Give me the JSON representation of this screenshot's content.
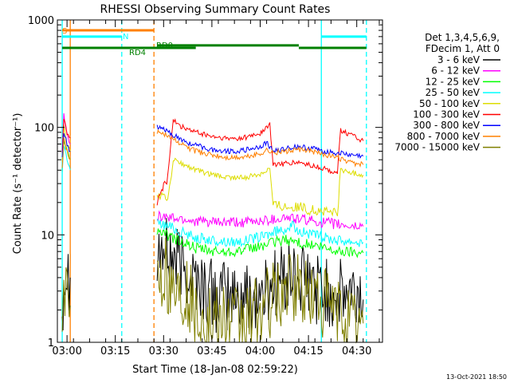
{
  "chart_data": {
    "type": "line",
    "title": "RHESSI Observing Summary Count Rates",
    "xlabel": "Start Time (18-Jan-08 02:59:22)",
    "ylabel": "Count Rate (s⁻¹ detector⁻¹)",
    "yscale": "log",
    "ylim": [
      1,
      1000
    ],
    "xlim_minutes": [
      -3,
      98
    ],
    "x_tick_labels": [
      "03:00",
      "03:15",
      "03:30",
      "03:45",
      "04:00",
      "04:15",
      "04:30"
    ],
    "x_tick_minutes": [
      0,
      15,
      30,
      45,
      60,
      75,
      90
    ],
    "y_tick_labels": [
      "1",
      "10",
      "100",
      "1000"
    ],
    "y_tick_values": [
      1,
      10,
      100,
      1000
    ],
    "legend_header": [
      "Det 1,3,4,5,6,9,",
      "FDecim 1, Att 0"
    ],
    "legend_position": "right",
    "footer_date": "13-Oct-2021 18:50",
    "gap_minutes": [
      1,
      28
    ],
    "series": [
      {
        "name": "3 - 6 keV",
        "color": "#000000",
        "x": [
          -1.5,
          -1,
          0,
          1,
          28,
          30,
          33,
          36,
          40,
          43,
          46,
          50,
          55,
          60,
          62,
          64,
          66,
          68,
          72,
          76,
          80,
          84,
          88,
          92
        ],
        "y": [
          2,
          4,
          5,
          4,
          8,
          7,
          6,
          5,
          4,
          3,
          2.7,
          2.6,
          2.6,
          2.7,
          3,
          3.6,
          4,
          4,
          3.8,
          3.4,
          3,
          2.7,
          2.6,
          2.5
        ]
      },
      {
        "name": "6 - 12 keV",
        "color": "#ff00ff",
        "x": [
          -1.5,
          -1,
          0,
          1,
          28,
          32,
          36,
          40,
          45,
          50,
          55,
          60,
          64,
          68,
          72,
          76,
          80,
          84,
          88,
          92
        ],
        "y": [
          60,
          130,
          90,
          70,
          15,
          14.5,
          14,
          13.5,
          13,
          13,
          13,
          13.5,
          14,
          14.5,
          14,
          13.5,
          13,
          12.5,
          12,
          12
        ]
      },
      {
        "name": "12 - 25 keV",
        "color": "#00ff00",
        "x": [
          -1.5,
          -1,
          0,
          1,
          28,
          32,
          36,
          40,
          45,
          50,
          55,
          60,
          64,
          68,
          72,
          76,
          80,
          84,
          88,
          92
        ],
        "y": [
          40,
          80,
          60,
          50,
          11,
          9.5,
          8.5,
          7.5,
          7,
          7,
          7.2,
          7.8,
          8.5,
          9,
          8.5,
          8,
          7.5,
          7,
          7,
          6.8
        ]
      },
      {
        "name": "25 - 50 keV",
        "color": "#00ffff",
        "x": [
          -1.5,
          -1,
          0,
          1,
          28,
          32,
          36,
          40,
          45,
          50,
          55,
          60,
          64,
          68,
          70,
          72,
          76,
          80,
          84,
          88,
          92
        ],
        "y": [
          40,
          70,
          50,
          40,
          13,
          12,
          10.5,
          9.5,
          8.8,
          8.6,
          8.8,
          9.5,
          10.5,
          11.5,
          12,
          11,
          10,
          9.5,
          9,
          8.8,
          8.5
        ]
      },
      {
        "name": "50 - 100 keV",
        "color": "#dddd00",
        "x": [
          -1.5,
          -1,
          0,
          1,
          28,
          30,
          31,
          33,
          36,
          40,
          45,
          50,
          55,
          60,
          62,
          63,
          64,
          68,
          72,
          76,
          80,
          84,
          85,
          88,
          92
        ],
        "y": [
          50,
          100,
          70,
          60,
          24,
          22,
          20,
          50,
          45,
          40,
          36,
          34,
          34,
          37,
          40,
          42,
          19,
          18.5,
          18,
          17,
          16.5,
          16,
          40,
          38,
          36
        ]
      },
      {
        "name": "100 - 300 keV",
        "color": "#ff0000",
        "x": [
          -1.5,
          -1,
          0,
          1,
          28,
          30,
          31,
          33,
          36,
          40,
          45,
          50,
          55,
          60,
          62,
          63,
          64,
          68,
          72,
          76,
          80,
          84,
          85,
          88,
          92
        ],
        "y": [
          60,
          120,
          90,
          80,
          20,
          30,
          30,
          115,
          100,
          90,
          82,
          78,
          80,
          88,
          100,
          105,
          45,
          46,
          47,
          44,
          41,
          38,
          95,
          85,
          75
        ]
      },
      {
        "name": "300 - 800 keV",
        "color": "#0000ff",
        "x": [
          -1.5,
          -1,
          0,
          1,
          28,
          30,
          33,
          36,
          40,
          45,
          50,
          55,
          60,
          62,
          64,
          68,
          72,
          76,
          80,
          84,
          88,
          92
        ],
        "y": [
          50,
          90,
          70,
          60,
          100,
          95,
          85,
          75,
          68,
          62,
          60,
          61,
          66,
          72,
          60,
          64,
          66,
          64,
          60,
          58,
          55,
          54
        ]
      },
      {
        "name": "800 - 7000 keV",
        "color": "#ff8000",
        "x": [
          -1.5,
          -1,
          0,
          1,
          28,
          30,
          33,
          36,
          40,
          45,
          50,
          55,
          60,
          62,
          64,
          68,
          72,
          76,
          80,
          84,
          88,
          92
        ],
        "y": [
          40,
          80,
          60,
          50,
          92,
          88,
          78,
          68,
          60,
          55,
          52,
          53,
          57,
          62,
          58,
          60,
          62,
          60,
          56,
          52,
          47,
          45
        ]
      },
      {
        "name": "7000 - 15000 keV",
        "color": "#808000",
        "x": [
          -1.5,
          -1,
          0,
          1,
          28,
          30,
          33,
          36,
          40,
          44,
          48,
          52,
          56,
          60,
          64,
          68,
          72,
          76,
          80,
          84,
          88,
          92
        ],
        "y": [
          1.8,
          2.5,
          2.5,
          2.2,
          5.5,
          4.5,
          3.5,
          2.8,
          2.2,
          1.5,
          1.5,
          1.5,
          1.6,
          2,
          2.6,
          3,
          3,
          2.8,
          2.4,
          2,
          1.6,
          1.5
        ]
      }
    ],
    "flag_bars": [
      {
        "label": "S",
        "color": "#ff8000",
        "x_start": -1.5,
        "x_end": 27,
        "y": 800
      },
      {
        "label": "N",
        "color": "#00ffff",
        "x_start": -1.5,
        "x_end": 17,
        "y": 700
      },
      {
        "label": "",
        "color": "#00ffff",
        "x_start": 79,
        "x_end": 93,
        "y": 700
      },
      {
        "label": "RD0",
        "color": "#008000",
        "x_start": 28,
        "x_end": 72,
        "y": 580
      },
      {
        "label": "RD4",
        "color": "#008000",
        "x_start": -1.5,
        "x_end": 40,
        "y": 550
      },
      {
        "label": "",
        "color": "#008000",
        "x_start": 72,
        "x_end": 93,
        "y": 550
      }
    ],
    "vertical_markers": [
      {
        "x": -1.5,
        "color": "#00ffff",
        "dashed": false
      },
      {
        "x": 1,
        "color": "#ff8000",
        "dashed": false
      },
      {
        "x": 17,
        "color": "#00ffff",
        "dashed": true
      },
      {
        "x": 27,
        "color": "#ff8000",
        "dashed": true
      },
      {
        "x": 79,
        "color": "#00ffff",
        "dashed": false
      },
      {
        "x": 93,
        "color": "#00ffff",
        "dashed": true
      }
    ]
  }
}
